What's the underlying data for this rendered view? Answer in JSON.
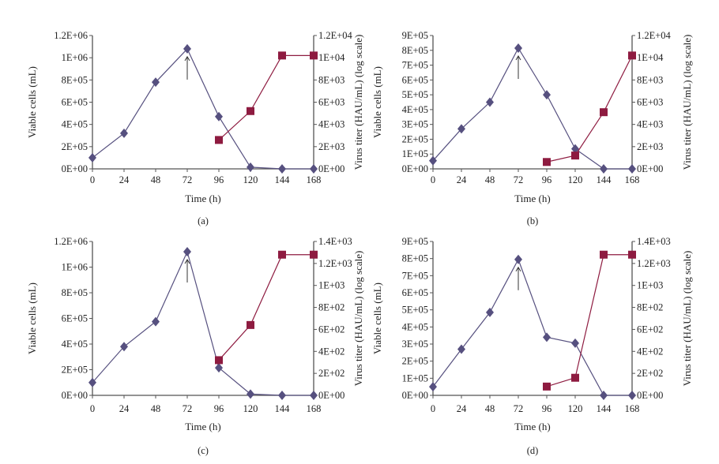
{
  "colors": {
    "cells": "#56507f",
    "virus": "#8e1b40",
    "axis": "#555555",
    "arrow": "#333333"
  },
  "chart_data": [
    {
      "type": "line",
      "caption": "(a)",
      "xlabel": "Time (h)",
      "ylabel": "Viable cells (mL)",
      "y2label": "Virus titer (HAU/mL) (log scale)",
      "x": [
        0,
        24,
        48,
        72,
        96,
        120,
        144,
        168
      ],
      "xticks": [
        "0",
        "24",
        "48",
        "72",
        "96",
        "120",
        "144",
        "168"
      ],
      "ylim": [
        0,
        1200000
      ],
      "yticks": [
        0,
        200000,
        400000,
        600000,
        800000,
        1000000,
        1200000
      ],
      "yticklabels": [
        "0E+00",
        "2E+05",
        "4E+05",
        "6E+05",
        "8E+05",
        "1E+06",
        "1.2E+06"
      ],
      "y2lim": [
        0,
        12000
      ],
      "y2ticks": [
        0,
        2000,
        4000,
        6000,
        8000,
        10000,
        12000
      ],
      "y2ticklabels": [
        "0E+00",
        "2E+03",
        "4E+03",
        "6E+03",
        "8E+03",
        "1E+04",
        "1.2E+04"
      ],
      "series": [
        {
          "name": "Viable cells",
          "axis": "left",
          "marker": "diamond",
          "x": [
            0,
            24,
            48,
            72,
            96,
            120,
            144,
            168
          ],
          "values": [
            100000,
            320000,
            780000,
            1080000,
            470000,
            15000,
            0,
            0
          ]
        },
        {
          "name": "Virus titer",
          "axis": "right",
          "marker": "square",
          "x": [
            96,
            120,
            144,
            168
          ],
          "values": [
            2600,
            5200,
            10200,
            10200
          ]
        }
      ],
      "annotation": {
        "type": "arrow-up",
        "x": 72
      }
    },
    {
      "type": "line",
      "caption": "(b)",
      "xlabel": "Time (h)",
      "ylabel": "Viable cells (mL)",
      "y2label": "Virus titer (HAU/mL) (log scale)",
      "x": [
        0,
        24,
        48,
        72,
        96,
        120,
        144,
        168
      ],
      "xticks": [
        "0",
        "24",
        "48",
        "72",
        "96",
        "120",
        "144",
        "168"
      ],
      "ylim": [
        0,
        900000
      ],
      "yticks": [
        0,
        100000,
        200000,
        300000,
        400000,
        500000,
        600000,
        700000,
        800000,
        900000
      ],
      "yticklabels": [
        "0E+00",
        "1E+05",
        "2E+05",
        "3E+05",
        "4E+05",
        "5E+05",
        "6E+05",
        "7E+05",
        "8E+05",
        "9E+05"
      ],
      "y2lim": [
        0,
        12000
      ],
      "y2ticks": [
        0,
        2000,
        4000,
        6000,
        8000,
        10000,
        12000
      ],
      "y2ticklabels": [
        "0E+00",
        "2E+03",
        "4E+03",
        "6E+03",
        "8E+03",
        "1E+04",
        "1.2E+04"
      ],
      "series": [
        {
          "name": "Viable cells",
          "axis": "left",
          "marker": "diamond",
          "x": [
            0,
            24,
            48,
            72,
            96,
            120,
            144,
            168
          ],
          "values": [
            55000,
            270000,
            450000,
            815000,
            500000,
            135000,
            0,
            0
          ]
        },
        {
          "name": "Virus titer",
          "axis": "right",
          "marker": "square",
          "x": [
            96,
            120,
            144,
            168
          ],
          "values": [
            620,
            1200,
            5100,
            10200
          ]
        }
      ],
      "annotation": {
        "type": "arrow-up",
        "x": 72
      }
    },
    {
      "type": "line",
      "caption": "(c)",
      "xlabel": "Time (h)",
      "ylabel": "Viable cells (mL)",
      "y2label": "Virus titer (HAU/mL) (log scale)",
      "x": [
        0,
        24,
        48,
        72,
        96,
        120,
        144,
        168
      ],
      "xticks": [
        "0",
        "24",
        "48",
        "72",
        "96",
        "120",
        "144",
        "168"
      ],
      "ylim": [
        0,
        1200000
      ],
      "yticks": [
        0,
        200000,
        400000,
        600000,
        800000,
        1000000,
        1200000
      ],
      "yticklabels": [
        "0E+00",
        "2E+05",
        "4E+05",
        "6E+05",
        "8E+05",
        "1E+06",
        "1.2E+06"
      ],
      "y2lim": [
        0,
        1400
      ],
      "y2ticks": [
        0,
        200,
        400,
        600,
        800,
        1000,
        1200,
        1400
      ],
      "y2ticklabels": [
        "0E+00",
        "2E+02",
        "4E+02",
        "6E+02",
        "8E+02",
        "1E+03",
        "1.2E+03",
        "1.4E+03"
      ],
      "series": [
        {
          "name": "Viable cells",
          "axis": "left",
          "marker": "diamond",
          "x": [
            0,
            24,
            48,
            72,
            96,
            120,
            144,
            168
          ],
          "values": [
            100000,
            380000,
            575000,
            1120000,
            215000,
            10000,
            0,
            0
          ]
        },
        {
          "name": "Virus titer",
          "axis": "right",
          "marker": "square",
          "x": [
            96,
            120,
            144,
            168
          ],
          "values": [
            320,
            640,
            1280,
            1280
          ]
        }
      ],
      "annotation": {
        "type": "arrow-up",
        "x": 72
      }
    },
    {
      "type": "line",
      "caption": "(d)",
      "xlabel": "Time (h)",
      "ylabel": "Viable cells (mL)",
      "y2label": "Virus titer (HAU/mL) (log scale)",
      "x": [
        0,
        24,
        48,
        72,
        96,
        120,
        144,
        168
      ],
      "xticks": [
        "0",
        "24",
        "48",
        "72",
        "96",
        "120",
        "144",
        "168"
      ],
      "ylim": [
        0,
        900000
      ],
      "yticks": [
        0,
        100000,
        200000,
        300000,
        400000,
        500000,
        600000,
        700000,
        800000,
        900000
      ],
      "yticklabels": [
        "0E+00",
        "1E+05",
        "2E+05",
        "3E+05",
        "4E+05",
        "5E+05",
        "6E+05",
        "7E+05",
        "8E+05",
        "9E+05"
      ],
      "y2lim": [
        0,
        1400
      ],
      "y2ticks": [
        0,
        200,
        400,
        600,
        800,
        1000,
        1200,
        1400
      ],
      "y2ticklabels": [
        "0E+00",
        "2E+02",
        "4E+02",
        "6E+02",
        "8E+02",
        "1E+03",
        "1.2E+03",
        "1.4E+03"
      ],
      "series": [
        {
          "name": "Viable cells",
          "axis": "left",
          "marker": "diamond",
          "x": [
            0,
            24,
            48,
            72,
            96,
            120,
            144,
            168
          ],
          "values": [
            50000,
            270000,
            485000,
            795000,
            340000,
            305000,
            0,
            0
          ]
        },
        {
          "name": "Virus titer",
          "axis": "right",
          "marker": "square",
          "x": [
            96,
            120,
            144,
            168
          ],
          "values": [
            80,
            160,
            1280,
            1280
          ]
        }
      ],
      "annotation": {
        "type": "arrow-up",
        "x": 72
      }
    }
  ]
}
